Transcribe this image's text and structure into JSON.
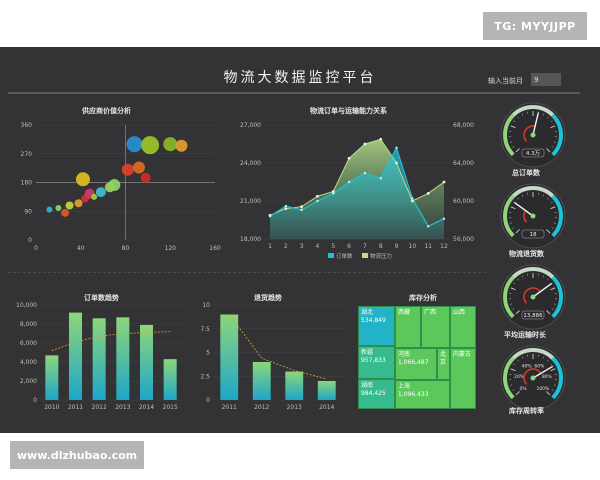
{
  "watermark_top": "TG: MYYJJPP",
  "watermark_bottom": "www.dlzhubao.com",
  "header": {
    "title": "物流大数据监控平台",
    "month_label": "输入当前月",
    "month_value": "9"
  },
  "colors": {
    "background": "#333335",
    "green": "#8dd67a",
    "teal": "#1ec2d8",
    "treemap_green": "#5cc85c",
    "treemap_teal": "#22b3c6"
  },
  "chart_data": [
    {
      "id": "supplier",
      "type": "scatter",
      "title": "供应商价值分析",
      "xlim": [
        0,
        160
      ],
      "ylim": [
        0,
        360
      ],
      "x_ticks": [
        0,
        40,
        80,
        120,
        160
      ],
      "y_ticks": [
        0,
        90,
        180,
        270,
        360
      ],
      "ref_x": 80,
      "ref_y": 180,
      "points": [
        {
          "x": 12,
          "y": 95,
          "r": 3,
          "color": "#2bb6d4"
        },
        {
          "x": 20,
          "y": 100,
          "r": 3,
          "color": "#8fd46a"
        },
        {
          "x": 26,
          "y": 85,
          "r": 4,
          "color": "#e05a2a"
        },
        {
          "x": 30,
          "y": 108,
          "r": 4,
          "color": "#c8d43a"
        },
        {
          "x": 38,
          "y": 115,
          "r": 4,
          "color": "#e0a030"
        },
        {
          "x": 42,
          "y": 190,
          "r": 7,
          "color": "#e0c020"
        },
        {
          "x": 44,
          "y": 130,
          "r": 4,
          "color": "#d03030"
        },
        {
          "x": 48,
          "y": 145,
          "r": 5,
          "color": "#d43a6a"
        },
        {
          "x": 52,
          "y": 135,
          "r": 3,
          "color": "#9cd43a"
        },
        {
          "x": 58,
          "y": 150,
          "r": 5,
          "color": "#3ac0d0"
        },
        {
          "x": 66,
          "y": 165,
          "r": 5,
          "color": "#a0d060"
        },
        {
          "x": 70,
          "y": 172,
          "r": 6,
          "color": "#8fd46a"
        },
        {
          "x": 82,
          "y": 220,
          "r": 6,
          "color": "#e04030"
        },
        {
          "x": 88,
          "y": 300,
          "r": 8,
          "color": "#2a8fd4"
        },
        {
          "x": 92,
          "y": 227,
          "r": 6,
          "color": "#e06a20"
        },
        {
          "x": 98,
          "y": 195,
          "r": 5,
          "color": "#d02a2a"
        },
        {
          "x": 102,
          "y": 297,
          "r": 9,
          "color": "#9cc42a"
        },
        {
          "x": 120,
          "y": 300,
          "r": 7,
          "color": "#8ab82a"
        },
        {
          "x": 130,
          "y": 295,
          "r": 6,
          "color": "#e0a030"
        }
      ]
    },
    {
      "id": "orders_transport",
      "type": "area",
      "title": "物流订单与运输能力关系",
      "categories": [
        "1",
        "2",
        "3",
        "4",
        "5",
        "6",
        "7",
        "8",
        "9",
        "10",
        "11",
        "12"
      ],
      "left_ticks": [
        18000,
        21000,
        24000,
        27000
      ],
      "right_ticks": [
        56000,
        60000,
        64000,
        68000
      ],
      "left_lim": [
        18000,
        27000
      ],
      "right_lim": [
        56000,
        68000
      ],
      "legend": [
        "订单数",
        "物流压力"
      ],
      "series": [
        {
          "name": "订单数",
          "axis": "left",
          "color": "#1ec2d8",
          "values": [
            19800,
            20600,
            20300,
            21000,
            21600,
            22500,
            23200,
            22800,
            25200,
            21200,
            19000,
            19600
          ]
        },
        {
          "name": "物流压力",
          "axis": "right",
          "color": "#b7e08a",
          "values": [
            58500,
            59200,
            59400,
            60500,
            61000,
            64500,
            66000,
            66500,
            64000,
            60000,
            60800,
            62000
          ]
        }
      ]
    },
    {
      "id": "order_trend",
      "type": "bar",
      "title": "订单数趋势",
      "categories": [
        "2010",
        "2011",
        "2012",
        "2013",
        "2014",
        "2015"
      ],
      "values": [
        4700,
        9200,
        8600,
        8700,
        7900,
        4300
      ],
      "y_ticks": [
        0,
        2000,
        4000,
        6000,
        8000,
        10000
      ],
      "y_labels": [
        "0",
        "2,000",
        "4,000",
        "6,000",
        "8,000",
        "10,000"
      ],
      "ylim": [
        0,
        10000
      ],
      "trend": [
        5200,
        6100,
        6700,
        7000,
        7100,
        7200
      ]
    },
    {
      "id": "return_trend",
      "type": "bar",
      "title": "退货趋势",
      "categories": [
        "2011",
        "2012",
        "2013",
        "2014"
      ],
      "values": [
        9,
        4,
        3,
        2
      ],
      "y_ticks": [
        0,
        2.5,
        5,
        7.5,
        10
      ],
      "y_labels": [
        "0",
        "2.5",
        "5",
        "7.5",
        "10"
      ],
      "ylim": [
        0,
        10
      ],
      "trend": [
        9,
        4.4,
        3.1,
        2.2
      ]
    },
    {
      "id": "inventory",
      "type": "table",
      "title": "库存分析",
      "cells": [
        {
          "name": "湖北",
          "value": "534,849",
          "color": "#22b3c6"
        },
        {
          "name": "西藏",
          "value": "",
          "color": "#5cc85c"
        },
        {
          "name": "广西",
          "value": "",
          "color": "#5cc85c"
        },
        {
          "name": "山西",
          "value": "",
          "color": "#5cc85c"
        },
        {
          "name": "新疆",
          "value": "957,833",
          "color": "#36ba8e"
        },
        {
          "name": "河南",
          "value": "1,066,487",
          "color": "#5cc85c"
        },
        {
          "name": "北京",
          "value": "",
          "color": "#5cc85c"
        },
        {
          "name": "内蒙古",
          "value": "",
          "color": "#5cc85c"
        },
        {
          "name": "湖南",
          "value": "984,425",
          "color": "#36ba8e"
        },
        {
          "name": "上海",
          "value": "1,096,433",
          "color": "#5cc85c"
        }
      ]
    }
  ],
  "gauges": [
    {
      "id": "total_orders",
      "label": "总订单数",
      "value_text": "4.3万",
      "fraction": 0.55
    },
    {
      "id": "return_orders",
      "label": "物流退货数",
      "value_text": "18",
      "fraction": 0.3
    },
    {
      "id": "avg_transport",
      "label": "平均运输时长",
      "value_text": "13,886",
      "fraction": 0.7
    },
    {
      "id": "turnover",
      "label": "库存周转率",
      "value_text": "",
      "fraction": 0.72,
      "ticks": [
        "0%",
        "20%",
        "40%",
        "60%",
        "80%",
        "100%"
      ]
    }
  ]
}
